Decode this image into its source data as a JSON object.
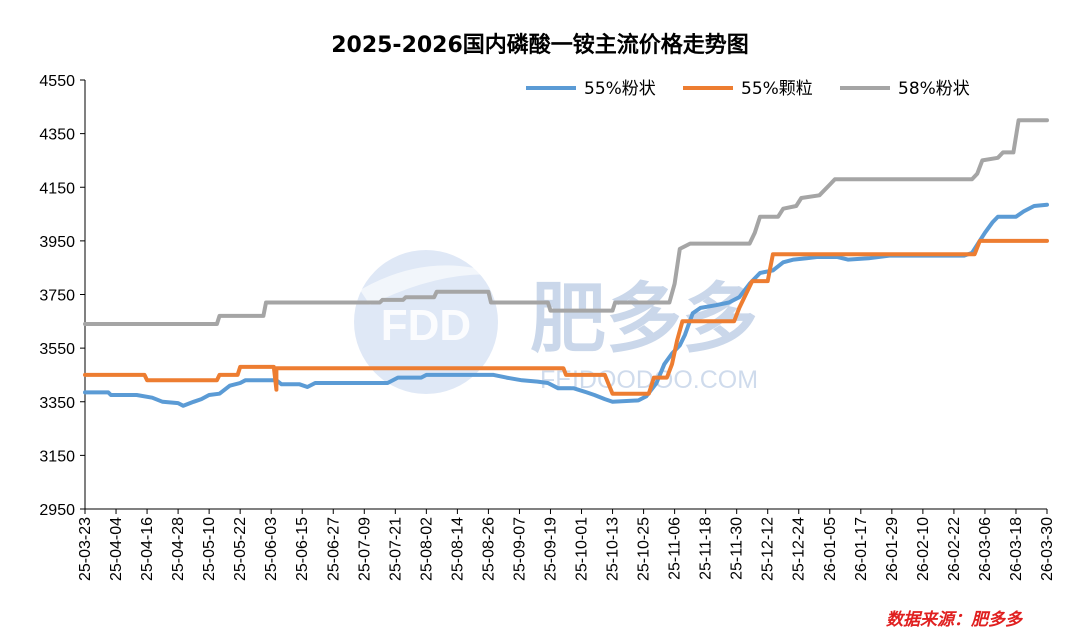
{
  "watermark": {
    "logo_text": "FDD",
    "brand": "肥多多",
    "url": "FEIDOODOO.COM"
  },
  "source_note": "数据来源：肥多多",
  "chart_data": {
    "type": "line",
    "title": "2025-2026国内磷酸一铵主流价格走势图",
    "xlabel": "",
    "ylabel": "",
    "ylim": [
      2950,
      4550
    ],
    "yticks": [
      2950,
      3150,
      3350,
      3550,
      3750,
      3950,
      4150,
      4350,
      4550
    ],
    "xlim": [
      "2025-03-23",
      "2026-03-30"
    ],
    "x_tick_labels": [
      "25-03-23",
      "25-04-04",
      "25-04-16",
      "25-04-28",
      "25-05-10",
      "25-05-22",
      "25-06-03",
      "25-06-15",
      "25-06-27",
      "25-07-09",
      "25-07-21",
      "25-08-02",
      "25-08-14",
      "25-08-26",
      "25-09-07",
      "25-09-19",
      "25-10-01",
      "25-10-13",
      "25-10-25",
      "25-11-06",
      "25-11-18",
      "25-11-30",
      "25-12-12",
      "25-12-24",
      "26-01-05",
      "26-01-17",
      "26-01-29",
      "26-02-10",
      "26-02-22",
      "26-03-06",
      "26-03-18",
      "26-03-30"
    ],
    "grid": false,
    "legend_position": "top-right",
    "series": [
      {
        "name": "55%粉状",
        "color": "#5b9bd5",
        "points": [
          [
            "2025-03-23",
            3385
          ],
          [
            "2025-04-01",
            3385
          ],
          [
            "2025-04-02",
            3375
          ],
          [
            "2025-04-12",
            3375
          ],
          [
            "2025-04-18",
            3365
          ],
          [
            "2025-04-22",
            3350
          ],
          [
            "2025-04-28",
            3345
          ],
          [
            "2025-04-30",
            3335
          ],
          [
            "2025-05-04",
            3350
          ],
          [
            "2025-05-07",
            3360
          ],
          [
            "2025-05-10",
            3375
          ],
          [
            "2025-05-14",
            3380
          ],
          [
            "2025-05-18",
            3410
          ],
          [
            "2025-05-22",
            3420
          ],
          [
            "2025-05-24",
            3430
          ],
          [
            "2025-06-05",
            3430
          ],
          [
            "2025-06-07",
            3415
          ],
          [
            "2025-06-14",
            3415
          ],
          [
            "2025-06-17",
            3405
          ],
          [
            "2025-06-20",
            3420
          ],
          [
            "2025-07-18",
            3420
          ],
          [
            "2025-07-22",
            3440
          ],
          [
            "2025-07-31",
            3440
          ],
          [
            "2025-08-02",
            3450
          ],
          [
            "2025-08-28",
            3450
          ],
          [
            "2025-09-02",
            3440
          ],
          [
            "2025-09-08",
            3430
          ],
          [
            "2025-09-14",
            3425
          ],
          [
            "2025-09-18",
            3420
          ],
          [
            "2025-09-22",
            3400
          ],
          [
            "2025-09-28",
            3400
          ],
          [
            "2025-10-03",
            3385
          ],
          [
            "2025-10-06",
            3375
          ],
          [
            "2025-10-10",
            3360
          ],
          [
            "2025-10-13",
            3350
          ],
          [
            "2025-10-23",
            3355
          ],
          [
            "2025-10-26",
            3370
          ],
          [
            "2025-10-30",
            3420
          ],
          [
            "2025-11-02",
            3490
          ],
          [
            "2025-11-05",
            3530
          ],
          [
            "2025-11-08",
            3560
          ],
          [
            "2025-11-10",
            3600
          ],
          [
            "2025-11-13",
            3680
          ],
          [
            "2025-11-16",
            3700
          ],
          [
            "2025-11-22",
            3710
          ],
          [
            "2025-11-27",
            3720
          ],
          [
            "2025-12-01",
            3740
          ],
          [
            "2025-12-05",
            3790
          ],
          [
            "2025-12-09",
            3830
          ],
          [
            "2025-12-14",
            3840
          ],
          [
            "2025-12-18",
            3870
          ],
          [
            "2025-12-22",
            3880
          ],
          [
            "2025-12-27",
            3885
          ],
          [
            "2025-12-31",
            3890
          ],
          [
            "2026-01-08",
            3890
          ],
          [
            "2026-01-12",
            3880
          ],
          [
            "2026-01-20",
            3885
          ],
          [
            "2026-01-28",
            3895
          ],
          [
            "2026-02-26",
            3895
          ],
          [
            "2026-03-01",
            3905
          ],
          [
            "2026-03-06",
            3980
          ],
          [
            "2026-03-09",
            4020
          ],
          [
            "2026-03-11",
            4040
          ],
          [
            "2026-03-18",
            4040
          ],
          [
            "2026-03-21",
            4060
          ],
          [
            "2026-03-25",
            4080
          ],
          [
            "2026-03-30",
            4085
          ]
        ]
      },
      {
        "name": "55%颗粒",
        "color": "#ed7d31",
        "points": [
          [
            "2025-03-23",
            3450
          ],
          [
            "2025-04-15",
            3450
          ],
          [
            "2025-04-16",
            3430
          ],
          [
            "2025-05-13",
            3430
          ],
          [
            "2025-05-14",
            3450
          ],
          [
            "2025-05-21",
            3450
          ],
          [
            "2025-05-22",
            3480
          ],
          [
            "2025-06-04",
            3480
          ],
          [
            "2025-06-05",
            3395
          ],
          [
            "2025-06-05",
            3475
          ],
          [
            "2025-09-24",
            3475
          ],
          [
            "2025-09-25",
            3450
          ],
          [
            "2025-10-10",
            3450
          ],
          [
            "2025-10-13",
            3380
          ],
          [
            "2025-10-27",
            3380
          ],
          [
            "2025-10-29",
            3440
          ],
          [
            "2025-11-03",
            3440
          ],
          [
            "2025-11-05",
            3490
          ],
          [
            "2025-11-07",
            3580
          ],
          [
            "2025-11-09",
            3650
          ],
          [
            "2025-11-29",
            3650
          ],
          [
            "2025-12-01",
            3700
          ],
          [
            "2025-12-06",
            3800
          ],
          [
            "2025-12-12",
            3800
          ],
          [
            "2025-12-14",
            3900
          ],
          [
            "2026-03-02",
            3900
          ],
          [
            "2026-03-04",
            3950
          ],
          [
            "2026-03-30",
            3950
          ]
        ]
      },
      {
        "name": "58%粉状",
        "color": "#a5a5a5",
        "points": [
          [
            "2025-03-23",
            3640
          ],
          [
            "2025-05-13",
            3640
          ],
          [
            "2025-05-14",
            3670
          ],
          [
            "2025-05-31",
            3670
          ],
          [
            "2025-06-01",
            3720
          ],
          [
            "2025-07-15",
            3720
          ],
          [
            "2025-07-16",
            3730
          ],
          [
            "2025-07-24",
            3730
          ],
          [
            "2025-07-25",
            3740
          ],
          [
            "2025-08-05",
            3740
          ],
          [
            "2025-08-06",
            3760
          ],
          [
            "2025-08-26",
            3760
          ],
          [
            "2025-08-27",
            3720
          ],
          [
            "2025-09-18",
            3720
          ],
          [
            "2025-09-19",
            3690
          ],
          [
            "2025-10-13",
            3690
          ],
          [
            "2025-10-14",
            3720
          ],
          [
            "2025-11-04",
            3720
          ],
          [
            "2025-11-06",
            3790
          ],
          [
            "2025-11-08",
            3920
          ],
          [
            "2025-11-12",
            3940
          ],
          [
            "2025-12-05",
            3940
          ],
          [
            "2025-12-07",
            3980
          ],
          [
            "2025-12-09",
            4040
          ],
          [
            "2025-12-16",
            4040
          ],
          [
            "2025-12-18",
            4070
          ],
          [
            "2025-12-23",
            4080
          ],
          [
            "2025-12-25",
            4110
          ],
          [
            "2026-01-01",
            4120
          ],
          [
            "2026-01-05",
            4160
          ],
          [
            "2026-01-07",
            4180
          ],
          [
            "2026-03-01",
            4180
          ],
          [
            "2026-03-03",
            4200
          ],
          [
            "2026-03-05",
            4250
          ],
          [
            "2026-03-11",
            4260
          ],
          [
            "2026-03-13",
            4280
          ],
          [
            "2026-03-17",
            4280
          ],
          [
            "2026-03-19",
            4400
          ],
          [
            "2026-03-30",
            4400
          ]
        ]
      }
    ]
  }
}
